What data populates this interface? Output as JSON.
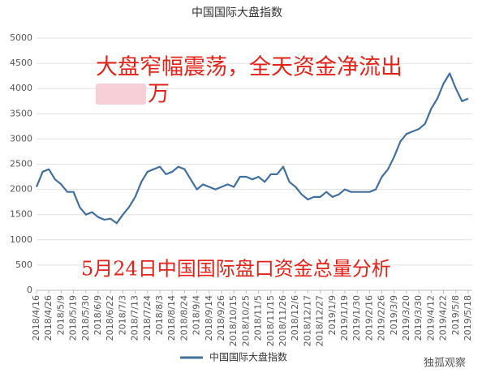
{
  "chart_data": {
    "type": "line",
    "title": "中国国际大盘指数",
    "categories": [
      "2018/4/16",
      null,
      "2018/4/26",
      null,
      "2018/5/9",
      null,
      "2018/5/19",
      null,
      "2018/5/30",
      null,
      "2018/6/9",
      null,
      "2018/6/22",
      null,
      "2018/7/3",
      null,
      "2018/7/13",
      null,
      "2018/7/24",
      null,
      "2018/8/3",
      null,
      "2018/8/14",
      null,
      "2018/8/24",
      null,
      "2018/9/4",
      null,
      "2018/9/14",
      null,
      "2018/9/26",
      null,
      "2018/10/15",
      null,
      "2018/10/25",
      null,
      "2018/11/5",
      null,
      "2018/11/15",
      null,
      "2018/11/26",
      null,
      "2018/12/6",
      null,
      "2018/12/17",
      null,
      "2018/12/27",
      null,
      "2019/1/9",
      null,
      "2019/1/19",
      null,
      "2019/1/30",
      null,
      "2019/2/16",
      null,
      "2019/2/26",
      null,
      "2019/3/9",
      null,
      "2019/3/20",
      null,
      "2019/3/30",
      null,
      "2019/4/12",
      null,
      "2019/4/22",
      null,
      "2019/5/8",
      null,
      "2019/5/18"
    ],
    "series": [
      {
        "name": "中国国际大盘指数",
        "color": "#41709f",
        "values": [
          2050,
          2350,
          2400,
          2200,
          2100,
          1950,
          1950,
          1650,
          1500,
          1550,
          1450,
          1400,
          1420,
          1330,
          1500,
          1650,
          1850,
          2150,
          2350,
          2400,
          2450,
          2300,
          2350,
          2450,
          2400,
          2200,
          2000,
          2100,
          2050,
          2000,
          2050,
          2100,
          2050,
          2250,
          2250,
          2200,
          2250,
          2150,
          2300,
          2300,
          2450,
          2150,
          2050,
          1900,
          1800,
          1850,
          1850,
          1950,
          1850,
          1900,
          2000,
          1950,
          1950,
          1950,
          1950,
          2000,
          2250,
          2400,
          2650,
          2950,
          3100,
          3150,
          3200,
          3300,
          3600,
          3800,
          4100,
          4300,
          4000,
          3750,
          3800
        ]
      }
    ],
    "ylim": [
      0,
      5000
    ],
    "yticks": [
      0,
      500,
      1000,
      1500,
      2000,
      2500,
      3000,
      3500,
      4000,
      4500,
      5000
    ],
    "grid": true,
    "legend": "bottom",
    "annotations": [
      "大盘窄幅震荡，全天资金净流出",
      "万",
      "5月24日中国国际盘口资金总量分析"
    ],
    "watermark": "独孤观察"
  }
}
